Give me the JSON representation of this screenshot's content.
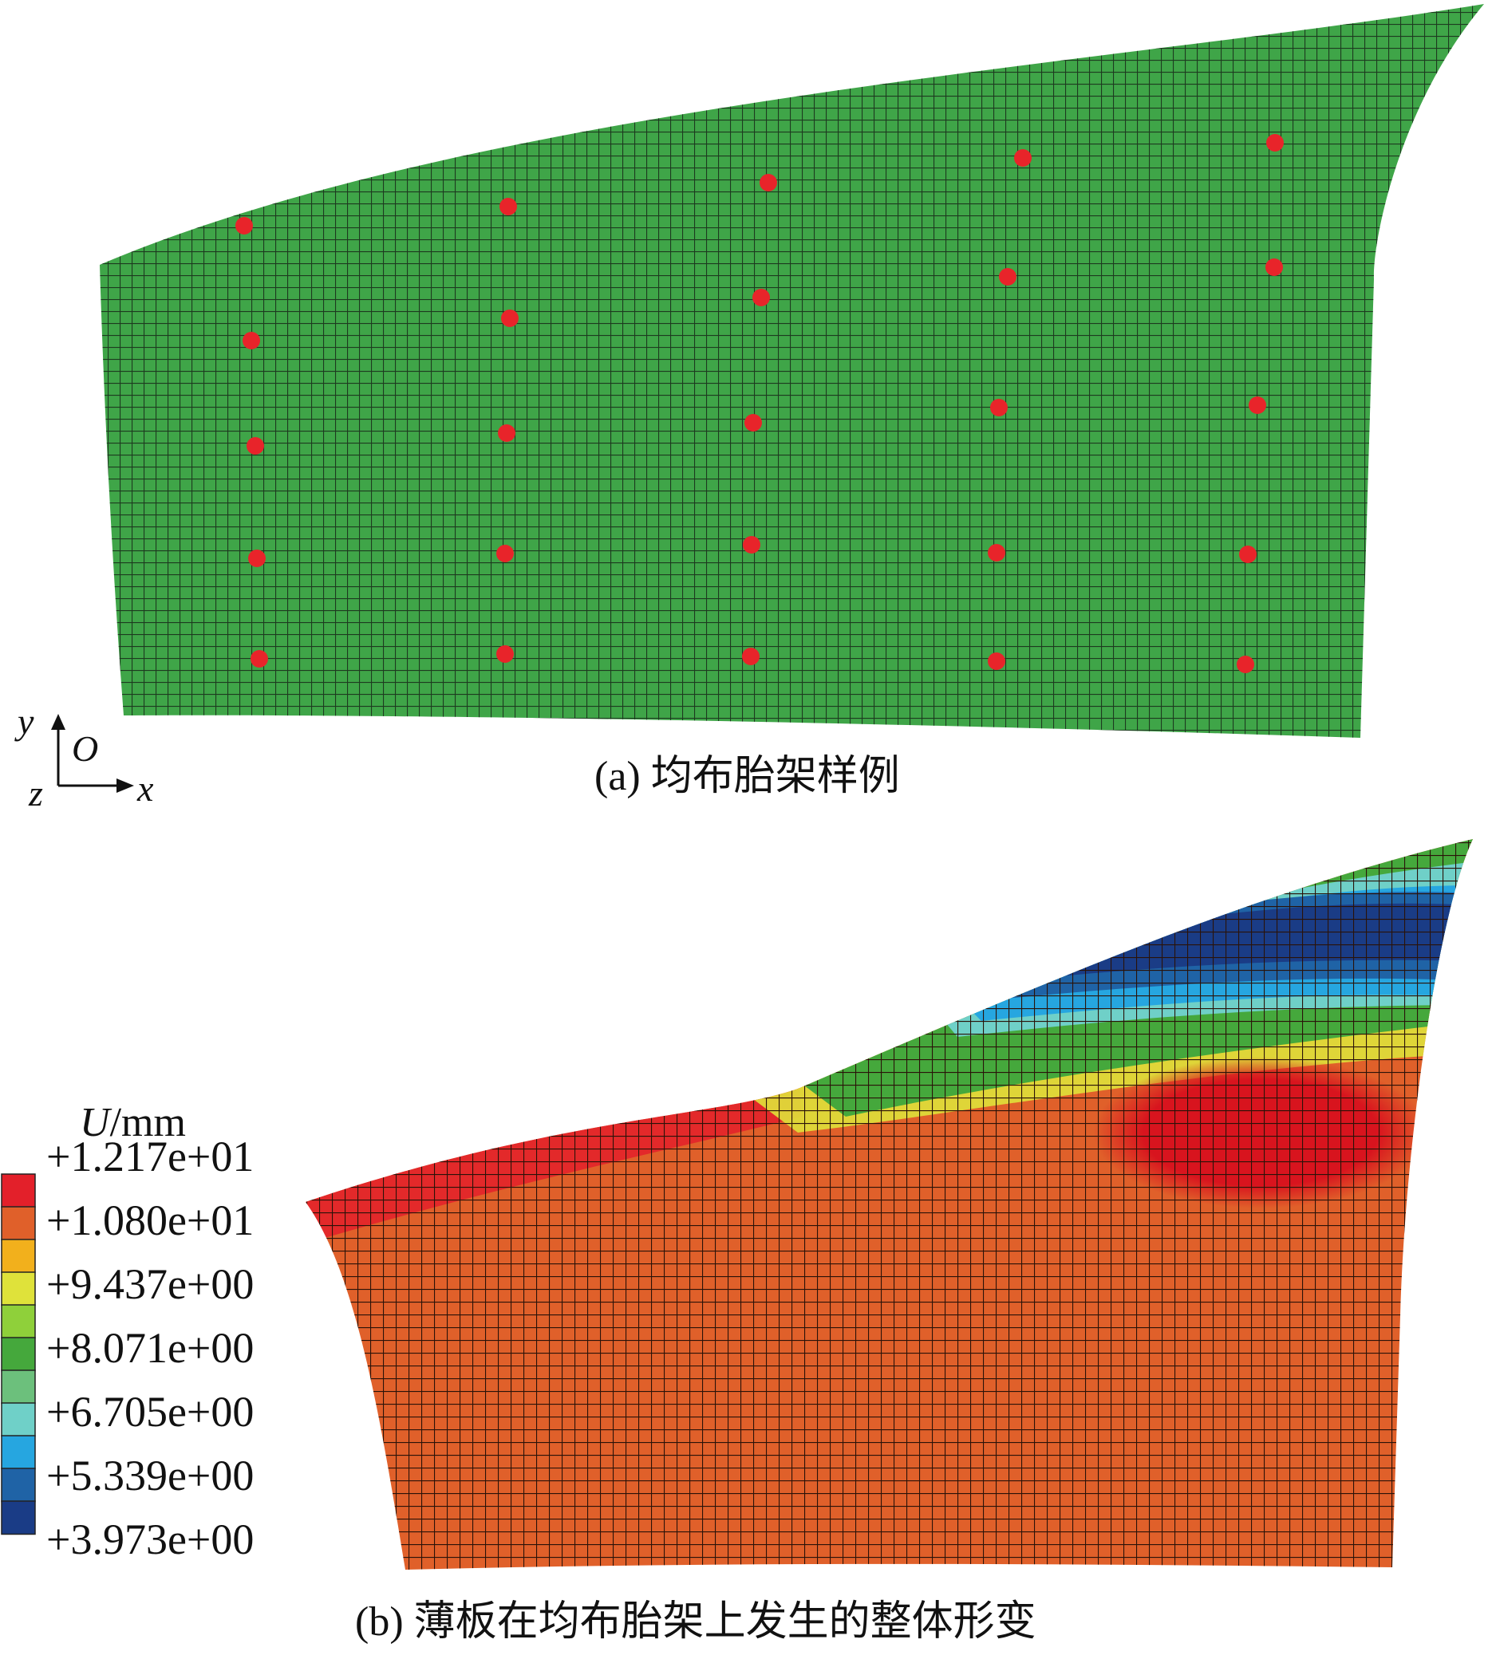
{
  "panel_a": {
    "caption": "(a)  均布胎架样例",
    "mesh_color": "#3fa548",
    "marker_color": "#e8242a"
  },
  "panel_b": {
    "caption": "(b)  薄板在均布胎架上发生的整体形变"
  },
  "axes_triad": {
    "y": "y",
    "o": "O",
    "x": "x",
    "z": "z"
  },
  "legend": {
    "symbol": "U",
    "unit": "/mm",
    "ticks": [
      "+1.217e+01",
      "+1.080e+01",
      "+9.437e+00",
      "+8.071e+00",
      "+6.705e+00",
      "+5.339e+00",
      "+3.973e+00"
    ],
    "colors": [
      "#e3202a",
      "#e0602a",
      "#f2b01c",
      "#dfe23a",
      "#8fd03a",
      "#45a83c",
      "#6cc07c",
      "#6fd0c8",
      "#26a6e0",
      "#1f63a6",
      "#1a3c86"
    ]
  }
}
